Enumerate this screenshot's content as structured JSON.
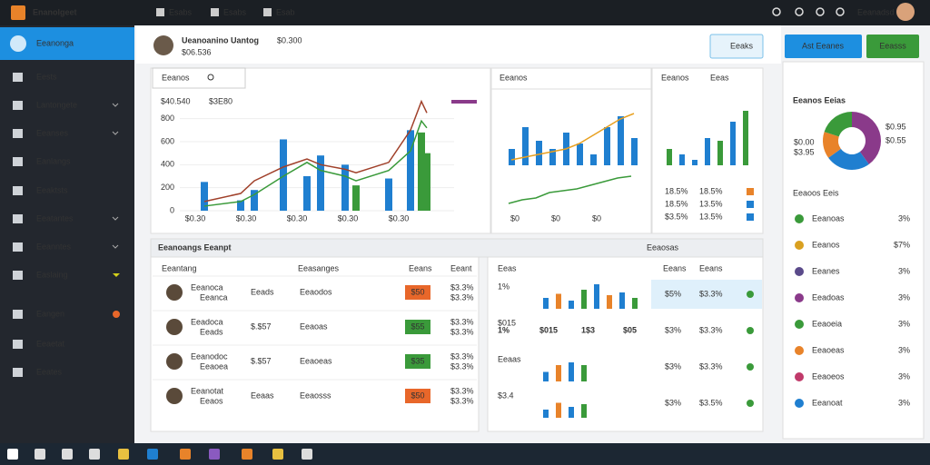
{
  "topbar": {
    "app": "Enanolgeet",
    "tabs": [
      "Esabs",
      "Esabs",
      "Esab"
    ],
    "user": "Eeanadsd"
  },
  "sidebar": {
    "items": [
      "Eeanonga",
      "Eests",
      "Lantongete",
      "Eeanses",
      "Eanlangs",
      "Eeaktsts",
      "Eeatantes",
      "Eeanntes",
      "Easlaing",
      "Eangen",
      "Eeaetat",
      "Eeates"
    ]
  },
  "header": {
    "title": "Ueanoanino Uantog",
    "meta": "$0.300",
    "subtitle": "$06.536",
    "button": "Eeaks"
  },
  "actions": [
    "Ast Eeanes",
    "Eeasss"
  ],
  "main_chart": {
    "search": "Eeanos",
    "legend": "$40.540",
    "legend2": "$3E80",
    "ylim": [
      0,
      900
    ],
    "yticks": [
      0,
      200,
      400,
      600,
      800
    ],
    "bars": {
      "values": [
        250,
        90,
        180,
        620,
        300,
        480,
        400,
        220,
        280,
        700,
        680,
        500
      ],
      "colors": [
        "#1f7fd0",
        "#1f7fd0",
        "#1f7fd0",
        "#1f7fd0",
        "#1f7fd0",
        "#1f7fd0",
        "#1f7fd0",
        "#3a9a3a",
        "#1f7fd0",
        "#1f7fd0",
        "#3a9a3a",
        "#3a9a3a"
      ]
    },
    "lines": [
      {
        "color": "#a0402a",
        "values": [
          80,
          150,
          260,
          380,
          450,
          400,
          360,
          330,
          420,
          700,
          950,
          850
        ]
      },
      {
        "color": "#3a9a3a",
        "values": [
          40,
          80,
          140,
          300,
          420,
          350,
          300,
          260,
          350,
          520,
          780,
          720
        ]
      }
    ],
    "xlabels": [
      "$0.30",
      "$0.30",
      "$0.30",
      "$0.30",
      "$0.30"
    ]
  },
  "mid_panel": {
    "head": "Eeanos",
    "legend": "Eeas",
    "chart1": {
      "ylim": [
        0,
        100
      ],
      "values": [
        30,
        70,
        45,
        30,
        60,
        40,
        20,
        70,
        90,
        50
      ],
      "line": [
        10,
        15,
        20,
        25,
        30,
        40,
        55,
        70,
        85,
        95
      ]
    },
    "chart2": {
      "ylim": [
        0,
        100
      ],
      "line": [
        20,
        30,
        35,
        50,
        55,
        60,
        70,
        80,
        90,
        95
      ]
    },
    "labels": [
      "$0",
      "$0",
      "$0"
    ]
  },
  "side_panel": {
    "head": "Eeanos",
    "head2": "Eeas",
    "values": [
      30,
      20,
      10,
      50,
      45,
      80,
      100
    ],
    "colors": [
      "#3a9a3a",
      "#1f7fd0",
      "#1f7fd0",
      "#1f7fd0",
      "#3a9a3a",
      "#1f7fd0",
      "#3a9a3a"
    ],
    "rows": [
      {
        "a": "18.5%",
        "b": "18.5%",
        "color": "#e8832a"
      },
      {
        "a": "18.5%",
        "b": "13.5%",
        "color": "#1f7fd0"
      },
      {
        "a": "$3.5%",
        "b": "13.5%",
        "color": "#1f7fd0"
      }
    ]
  },
  "section": {
    "title": "Eeanoangs Eeanpt",
    "right": "Eeaosas"
  },
  "left_table": {
    "header": [
      "Eeantang",
      "Eeasanges",
      "Eeans",
      "Eeant"
    ],
    "rows": [
      {
        "name": "Eeanoca",
        "sub": "Eeanca",
        "c2": "Eeads",
        "c3": "Eeaodos",
        "badge": "$50",
        "color": "#e8672a",
        "p1": "$3.3%",
        "p2": "$3.3%"
      },
      {
        "name": "Eeadoca",
        "sub": "Eeads",
        "c2": "$.$57",
        "c3": "Eeaoas",
        "badge": "$55",
        "color": "#3a9a3a",
        "p1": "$3.3%",
        "p2": "$3.3%"
      },
      {
        "name": "Eeanodoc",
        "sub": "Eeaoea",
        "c2": "$.$57",
        "c3": "Eeaoeas",
        "badge": "$35",
        "color": "#3a9a3a",
        "p1": "$3.3%",
        "p2": "$3.3%"
      },
      {
        "name": "Eeanotat",
        "sub": "Eeaos",
        "c2": "Eeaas",
        "c3": "Eeaosss",
        "badge": "$50",
        "color": "#e8672a",
        "p1": "$3.3%",
        "p2": "$3.3%"
      }
    ]
  },
  "right_table": {
    "header": [
      "Eeas",
      "Eeans",
      "Eeans"
    ],
    "rows": [
      {
        "label": "1%",
        "p1": "$5%",
        "p2": "$3.3%",
        "bars": [
          40,
          55,
          30,
          70,
          90,
          50,
          60,
          40
        ]
      },
      {
        "label": "$015",
        "p1": "$3%",
        "p2": "$3.3%",
        "bars": []
      },
      {
        "label": "Eeaas",
        "p1": "$3%",
        "p2": "$3.3%",
        "bars": [
          35,
          60,
          70,
          60
        ]
      },
      {
        "label": "$3.4",
        "p1": "$3%",
        "p2": "$3.5%",
        "bars": [
          30,
          55,
          40,
          50
        ]
      }
    ],
    "big": [
      "1%",
      "$015",
      "1$3",
      "$05"
    ]
  },
  "right_panel": {
    "title": "Eeanos Eeias",
    "donut": {
      "values": [
        40,
        25,
        15,
        20
      ],
      "colors": [
        "#8a3a8a",
        "#1f7fd0",
        "#e8832a",
        "#3a9a3a"
      ]
    },
    "donut_labels": [
      "$0.95",
      "$0.55",
      "$0.00",
      "$3.95"
    ],
    "list_title": "Eeaoos Eeis",
    "items": [
      {
        "name": "Eeanoas",
        "pct": "3%",
        "color": "#3a9a3a"
      },
      {
        "name": "Eeanos",
        "pct": "$7%",
        "color": "#d9a020"
      },
      {
        "name": "Eeanes",
        "pct": "3%",
        "color": "#5a4a8a"
      },
      {
        "name": "Eeadoas",
        "pct": "3%",
        "color": "#8a3a8a"
      },
      {
        "name": "Eeaoeia",
        "pct": "3%",
        "color": "#3a9a3a"
      },
      {
        "name": "Eeaoeas",
        "pct": "3%",
        "color": "#e8832a"
      },
      {
        "name": "Eeaoeos",
        "pct": "3%",
        "color": "#c03a6a"
      },
      {
        "name": "Eeanoat",
        "pct": "3%",
        "color": "#1f7fd0"
      }
    ]
  }
}
